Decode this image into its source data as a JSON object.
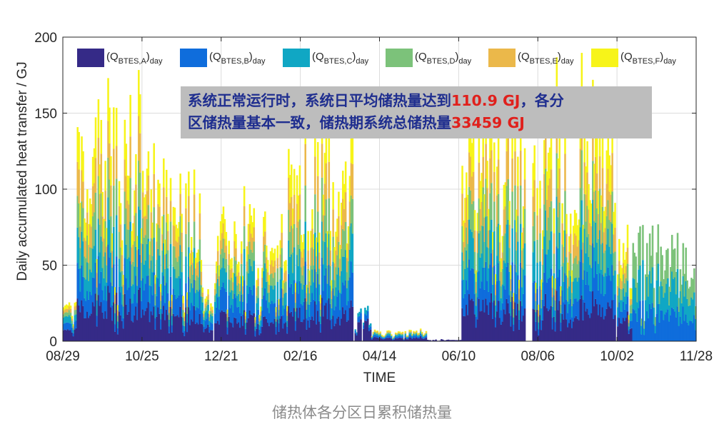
{
  "caption": "储热体各分区日累积储热量",
  "annotation": {
    "line1_text": "系统正常运行时，系统日平均储热量达到",
    "line1_value": "110.9 GJ",
    "line1_tail": "，各分",
    "line2_text": "区储热量基本一致，储热期系统总储热量",
    "line2_value": "33459 GJ"
  },
  "colors": {
    "A": "#352a87",
    "B": "#0f6ddc",
    "C": "#10a7c4",
    "D": "#7cc27a",
    "E": "#ebb84a",
    "F": "#f7f419",
    "highlight": "#e0201c",
    "annotation_text": "#1f2e8f"
  },
  "chart_data": {
    "type": "area",
    "stacked": true,
    "xlabel": "TIME",
    "ylabel": "Daily accumulated heat transfer / GJ",
    "ylim": [
      0,
      200
    ],
    "yticks": [
      "0",
      "50",
      "100",
      "150",
      "200"
    ],
    "xlim_day_index": [
      0,
      456
    ],
    "xticks": [
      {
        "label": "08/29",
        "day": 0
      },
      {
        "label": "10/25",
        "day": 57
      },
      {
        "label": "12/21",
        "day": 114
      },
      {
        "label": "02/16",
        "day": 171
      },
      {
        "label": "04/14",
        "day": 228
      },
      {
        "label": "06/10",
        "day": 285
      },
      {
        "label": "08/06",
        "day": 342
      },
      {
        "label": "10/02",
        "day": 399
      },
      {
        "label": "11/28",
        "day": 456
      }
    ],
    "grid": true,
    "legend_position": "top",
    "series": [
      {
        "key": "A",
        "main": "(Q",
        "sub": "BTES,A",
        "tail": ")",
        "sub2": "day"
      },
      {
        "key": "B",
        "main": "(Q",
        "sub": "BTES,B",
        "tail": ")",
        "sub2": "day"
      },
      {
        "key": "C",
        "main": "(Q",
        "sub": "BTES,C",
        "tail": ")",
        "sub2": "day"
      },
      {
        "key": "D",
        "main": "(Q",
        "sub": "BTES,D",
        "tail": ")",
        "sub2": "day"
      },
      {
        "key": "E",
        "main": "(Q",
        "sub": "BTES,E",
        "tail": ")",
        "sub2": "day"
      },
      {
        "key": "F",
        "main": "(Q",
        "sub": "BTES,F",
        "tail": ")",
        "sub2": "day"
      }
    ],
    "segments": [
      {
        "start": 0,
        "end": 10,
        "total": 20,
        "shares": [
          0.3,
          0.2,
          0.18,
          0.12,
          0.1,
          0.1
        ]
      },
      {
        "start": 10,
        "end": 57,
        "total": 118,
        "shares": [
          0.19,
          0.15,
          0.17,
          0.17,
          0.16,
          0.16
        ]
      },
      {
        "start": 57,
        "end": 100,
        "total": 98,
        "shares": [
          0.2,
          0.17,
          0.18,
          0.16,
          0.15,
          0.14
        ]
      },
      {
        "start": 100,
        "end": 110,
        "total": 26,
        "shares": [
          0.3,
          0.2,
          0.2,
          0.1,
          0.1,
          0.1
        ]
      },
      {
        "start": 110,
        "end": 162,
        "total": 70,
        "shares": [
          0.22,
          0.2,
          0.18,
          0.14,
          0.12,
          0.14
        ]
      },
      {
        "start": 162,
        "end": 210,
        "total": 110,
        "shares": [
          0.18,
          0.17,
          0.17,
          0.16,
          0.16,
          0.16
        ]
      },
      {
        "start": 210,
        "end": 222,
        "total": 18,
        "shares": [
          0.65,
          0.2,
          0.15,
          0,
          0,
          0
        ]
      },
      {
        "start": 222,
        "end": 262,
        "total": 6,
        "shares": [
          0.35,
          0.2,
          0.15,
          0.1,
          0.1,
          0.1
        ]
      },
      {
        "start": 262,
        "end": 287,
        "total": 0.8,
        "shares": [
          1,
          0,
          0,
          0,
          0,
          0
        ]
      },
      {
        "start": 287,
        "end": 333,
        "total": 120,
        "shares": [
          0.19,
          0.16,
          0.17,
          0.16,
          0.16,
          0.16
        ]
      },
      {
        "start": 333,
        "end": 338,
        "total": 0,
        "shares": [
          0,
          0,
          0,
          0,
          0,
          0
        ]
      },
      {
        "start": 338,
        "end": 398,
        "total": 118,
        "shares": [
          0.18,
          0.16,
          0.17,
          0.16,
          0.16,
          0.17
        ]
      },
      {
        "start": 398,
        "end": 410,
        "total": 60,
        "shares": [
          0.25,
          0.15,
          0.15,
          0.15,
          0.12,
          0.18
        ]
      },
      {
        "start": 410,
        "end": 456,
        "total": 60,
        "shares": [
          0,
          0.33,
          0.33,
          0.34,
          0,
          0
        ]
      }
    ],
    "gaps_day_index": [
      108,
      209,
      215,
      333,
      334,
      335,
      336,
      337,
      398
    ]
  }
}
